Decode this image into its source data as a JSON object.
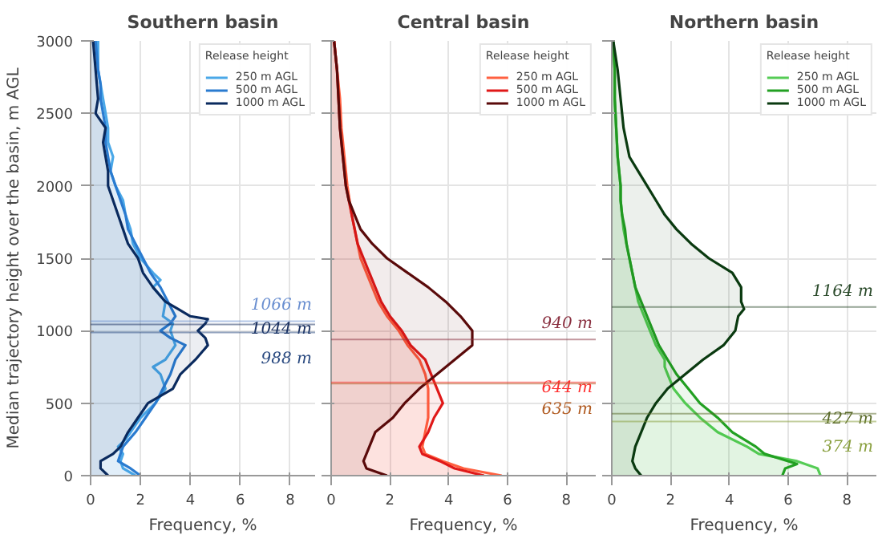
{
  "chart_data": [
    {
      "type": "area",
      "orientation": "horizontal",
      "title": "Southern basin",
      "xlabel": "Frequency, %",
      "ylabel": "Median trajectory height over the basin, m AGL",
      "legend_title": "Release height",
      "legend": "top right",
      "grid": true,
      "xlim": [
        0,
        9
      ],
      "xticks": [
        0,
        2,
        4,
        6,
        8
      ],
      "ylim": [
        0,
        3000
      ],
      "yticks": [
        0,
        500,
        1000,
        1500,
        2000,
        2500,
        3000
      ],
      "series": [
        {
          "name": "250 m AGL",
          "color": "#4aa8e8",
          "values": [
            1.8,
            1.3,
            1.2,
            1.3,
            1.1,
            1.4,
            1.6,
            2.0,
            2.6,
            3.0,
            2.8,
            2.5,
            3.0,
            3.4,
            3.2,
            3.3,
            2.9,
            3.0,
            2.5,
            2.8,
            2.5,
            2.0,
            1.7,
            1.6,
            1.4,
            1.3,
            1.0,
            0.8,
            0.9,
            0.7,
            0.7,
            0.6,
            0.5,
            0.4,
            0.3,
            0.3,
            0.3
          ],
          "x": [
            0,
            50,
            100,
            150,
            200,
            250,
            300,
            400,
            500,
            600,
            700,
            750,
            800,
            900,
            1000,
            1050,
            1100,
            1200,
            1300,
            1350,
            1400,
            1500,
            1600,
            1700,
            1800,
            1900,
            2000,
            2100,
            2200,
            2300,
            2400,
            2500,
            2600,
            2700,
            2800,
            2900,
            3000
          ]
        },
        {
          "name": "500 m AGL",
          "color": "#2a7bd0",
          "values": [
            2.0,
            1.6,
            1.1,
            1.3,
            1.8,
            2.2,
            2.6,
            2.9,
            3.2,
            3.4,
            3.8,
            3.2,
            2.8,
            3.2,
            3.4,
            3.1,
            2.8,
            2.4,
            2.1,
            1.8,
            1.5,
            1.4,
            1.2,
            1.0,
            0.8,
            0.7,
            0.6,
            0.6,
            0.5,
            0.4,
            0.4,
            0.3,
            0.2
          ],
          "x": [
            0,
            50,
            100,
            200,
            300,
            400,
            500,
            600,
            700,
            800,
            900,
            950,
            1000,
            1050,
            1100,
            1200,
            1300,
            1400,
            1500,
            1600,
            1700,
            1800,
            1900,
            2000,
            2100,
            2200,
            2300,
            2400,
            2500,
            2600,
            2700,
            2800,
            3000
          ]
        },
        {
          "name": "1000 m AGL",
          "color": "#0a2a5e",
          "values": [
            0.7,
            0.4,
            0.4,
            0.9,
            1.2,
            1.5,
            1.9,
            2.3,
            3.3,
            3.6,
            4.2,
            4.7,
            4.6,
            4.3,
            4.6,
            4.7,
            4.0,
            3.5,
            3.0,
            2.5,
            2.1,
            1.9,
            1.5,
            1.3,
            1.1,
            0.9,
            0.7,
            0.7,
            0.6,
            0.5,
            0.6,
            0.2,
            0.3,
            0.2,
            0.1
          ],
          "x": [
            0,
            50,
            100,
            150,
            200,
            300,
            400,
            500,
            600,
            700,
            800,
            900,
            950,
            1000,
            1050,
            1080,
            1100,
            1150,
            1200,
            1300,
            1400,
            1500,
            1600,
            1700,
            1800,
            1900,
            2000,
            2100,
            2200,
            2300,
            2400,
            2500,
            2600,
            2800,
            3000
          ]
        }
      ],
      "ref_lines": [
        {
          "axis": "y",
          "value": 1066,
          "label": "1066 m",
          "color": "#6a8fd0"
        },
        {
          "axis": "y",
          "value": 1044,
          "label": "1044 m",
          "color": "#1a3060"
        },
        {
          "axis": "y",
          "value": 988,
          "label": "988 m",
          "color": "#2a4a80"
        }
      ]
    },
    {
      "type": "area",
      "orientation": "horizontal",
      "title": "Central basin",
      "xlabel": "Frequency, %",
      "legend_title": "Release height",
      "legend": "top right",
      "grid": true,
      "tick_labels": "x",
      "xlim": [
        0,
        9
      ],
      "xticks": [
        0,
        2,
        4,
        6,
        8
      ],
      "ylim": [
        0,
        3000
      ],
      "yticks": [
        0,
        500,
        1000,
        1500,
        2000,
        2500,
        3000
      ],
      "series": [
        {
          "name": "250 m AGL",
          "color": "#ff6040",
          "values": [
            5.8,
            4.5,
            3.8,
            3.2,
            3.1,
            3.2,
            3.3,
            3.3,
            3.3,
            3.2,
            3.0,
            2.6,
            2.3,
            1.9,
            1.6,
            1.4,
            1.2,
            1.0,
            0.9,
            0.8,
            0.7,
            0.55,
            0.45,
            0.35,
            0.3,
            0.2,
            0.1
          ],
          "x": [
            0,
            50,
            100,
            150,
            200,
            300,
            400,
            500,
            600,
            700,
            800,
            900,
            1000,
            1100,
            1200,
            1300,
            1400,
            1500,
            1600,
            1700,
            1800,
            2000,
            2200,
            2400,
            2600,
            2800,
            3000
          ]
        },
        {
          "name": "500 m AGL",
          "color": "#e01818",
          "values": [
            5.2,
            4.2,
            3.7,
            3.1,
            3.0,
            3.3,
            3.5,
            3.8,
            3.6,
            3.4,
            3.2,
            2.7,
            2.4,
            2.0,
            1.7,
            1.5,
            1.3,
            1.1,
            0.9,
            0.8,
            0.7,
            0.5,
            0.4,
            0.3,
            0.25,
            0.2,
            0.1
          ],
          "x": [
            0,
            50,
            100,
            150,
            200,
            300,
            400,
            500,
            600,
            700,
            800,
            900,
            1000,
            1100,
            1200,
            1300,
            1400,
            1500,
            1600,
            1700,
            1800,
            2000,
            2200,
            2400,
            2600,
            2800,
            3000
          ]
        },
        {
          "name": "1000 m AGL",
          "color": "#5a0a0a",
          "values": [
            1.9,
            1.2,
            1.1,
            1.2,
            1.3,
            1.5,
            2.1,
            2.5,
            3.0,
            3.6,
            4.2,
            4.8,
            4.8,
            4.4,
            3.9,
            3.3,
            2.6,
            1.9,
            1.4,
            1.0,
            0.8,
            0.6,
            0.5,
            0.4,
            0.3,
            0.25,
            0.2,
            0.1
          ],
          "x": [
            0,
            50,
            100,
            150,
            200,
            300,
            400,
            500,
            600,
            700,
            800,
            900,
            1000,
            1100,
            1200,
            1300,
            1400,
            1500,
            1600,
            1700,
            1800,
            1900,
            2000,
            2200,
            2400,
            2600,
            2800,
            3000
          ]
        }
      ],
      "ref_lines": [
        {
          "axis": "y",
          "value": 940,
          "label": "940 m",
          "color": "#8a3040"
        },
        {
          "axis": "y",
          "value": 644,
          "label": "644 m",
          "color": "#ff3030"
        },
        {
          "axis": "y",
          "value": 635,
          "label": "635 m",
          "color": "#b05a20"
        }
      ]
    },
    {
      "type": "area",
      "orientation": "horizontal",
      "title": "Northern basin",
      "xlabel": "Frequency, %",
      "legend_title": "Release height",
      "legend": "top right",
      "grid": true,
      "tick_labels": "x",
      "xlim": [
        0,
        9
      ],
      "xticks": [
        0,
        2,
        4,
        6,
        8
      ],
      "ylim": [
        0,
        3000
      ],
      "yticks": [
        0,
        500,
        1000,
        1500,
        2000,
        2500,
        3000
      ],
      "series": [
        {
          "name": "250 m AGL",
          "color": "#55cc55",
          "values": [
            7.1,
            7.0,
            6.3,
            5.0,
            4.6,
            3.6,
            3.0,
            2.5,
            2.1,
            1.9,
            1.8,
            1.8,
            1.5,
            1.3,
            1.1,
            0.9,
            0.8,
            0.7,
            0.6,
            0.5,
            0.4,
            0.35,
            0.3,
            0.3,
            0.2,
            0.15,
            0.1,
            0.1,
            0.05
          ],
          "x": [
            0,
            50,
            100,
            150,
            200,
            300,
            400,
            500,
            600,
            700,
            750,
            800,
            900,
            1000,
            1100,
            1200,
            1300,
            1400,
            1500,
            1600,
            1700,
            1800,
            1900,
            2000,
            2200,
            2400,
            2600,
            2800,
            3000
          ]
        },
        {
          "name": "500 m AGL",
          "color": "#22a022",
          "values": [
            5.8,
            5.9,
            6.3,
            6.0,
            5.2,
            4.9,
            4.1,
            3.6,
            3.0,
            2.6,
            2.2,
            1.9,
            1.6,
            1.4,
            1.2,
            1.0,
            0.8,
            0.7,
            0.6,
            0.5,
            0.45,
            0.35,
            0.3,
            0.3,
            0.2,
            0.15,
            0.1,
            0.1,
            0.05
          ],
          "x": [
            0,
            50,
            80,
            100,
            150,
            200,
            300,
            400,
            500,
            600,
            700,
            800,
            900,
            1000,
            1100,
            1200,
            1300,
            1400,
            1500,
            1600,
            1700,
            1800,
            1900,
            2000,
            2200,
            2400,
            2600,
            2800,
            3000
          ]
        },
        {
          "name": "1000 m AGL",
          "color": "#0a3a10",
          "values": [
            1.0,
            0.8,
            0.7,
            0.8,
            1.0,
            1.2,
            1.5,
            1.9,
            2.5,
            3.1,
            3.8,
            4.2,
            4.3,
            4.5,
            4.4,
            4.4,
            4.1,
            3.3,
            2.7,
            2.2,
            1.8,
            1.5,
            1.2,
            0.9,
            0.6,
            0.4,
            0.3,
            0.2,
            0.05
          ],
          "x": [
            0,
            50,
            100,
            200,
            300,
            400,
            500,
            600,
            700,
            800,
            900,
            1000,
            1100,
            1150,
            1200,
            1300,
            1400,
            1500,
            1600,
            1700,
            1800,
            1900,
            2000,
            2100,
            2200,
            2400,
            2600,
            2800,
            3000
          ]
        }
      ],
      "ref_lines": [
        {
          "axis": "y",
          "value": 1164,
          "label": "1164 m",
          "color": "#2a4a2a"
        },
        {
          "axis": "y",
          "value": 427,
          "label": "427 m",
          "color": "#5a6a2a"
        },
        {
          "axis": "y",
          "value": 374,
          "label": "374 m",
          "color": "#8aa040"
        }
      ]
    }
  ]
}
